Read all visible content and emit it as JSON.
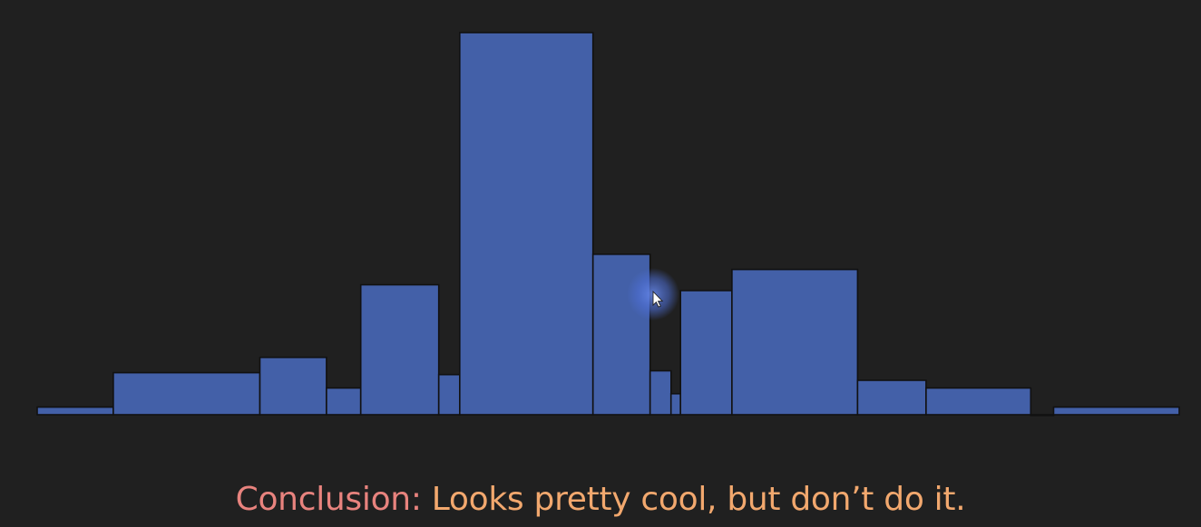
{
  "chart_data": {
    "type": "bar",
    "subtype": "variable-width histogram",
    "bins": [
      {
        "x0": 0.0,
        "x1": 4.0,
        "value": 4
      },
      {
        "x0": 4.0,
        "x1": 11.7,
        "value": 22
      },
      {
        "x0": 11.7,
        "x1": 15.2,
        "value": 30
      },
      {
        "x0": 15.2,
        "x1": 17.0,
        "value": 14
      },
      {
        "x0": 17.0,
        "x1": 21.1,
        "value": 68
      },
      {
        "x0": 21.1,
        "x1": 22.2,
        "value": 21
      },
      {
        "x0": 22.2,
        "x1": 29.2,
        "value": 200
      },
      {
        "x0": 29.2,
        "x1": 32.2,
        "value": 84
      },
      {
        "x0": 32.2,
        "x1": 33.3,
        "value": 23
      },
      {
        "x0": 33.3,
        "x1": 33.8,
        "value": 11
      },
      {
        "x0": 33.8,
        "x1": 36.5,
        "value": 65
      },
      {
        "x0": 36.5,
        "x1": 43.1,
        "value": 76
      },
      {
        "x0": 43.1,
        "x1": 46.7,
        "value": 18
      },
      {
        "x0": 46.7,
        "x1": 52.2,
        "value": 14
      },
      {
        "x0": 52.2,
        "x1": 53.4,
        "value": 0
      },
      {
        "x0": 53.4,
        "x1": 60.0,
        "value": 4
      }
    ],
    "xlim": [
      0,
      60
    ],
    "ylim": [
      0,
      200
    ],
    "grid": false,
    "axes_visible": false,
    "title": "",
    "xlabel": "",
    "ylabel": "",
    "colors": {
      "bar_fill": "#4360a8",
      "bar_stroke": "#111111",
      "background": "#202020"
    }
  },
  "caption": {
    "label": "Conclusion:",
    "text": " Looks pretty cool, but don’t do it."
  },
  "cursor": {
    "icon": "mouse-pointer-icon",
    "highlight_color": "#5577dd"
  }
}
